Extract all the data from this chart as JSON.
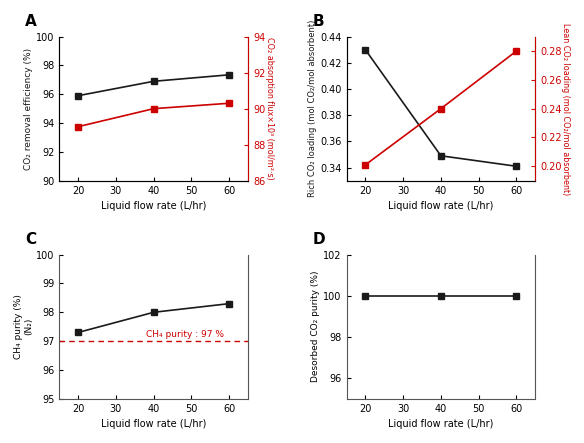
{
  "x": [
    20,
    40,
    60
  ],
  "A": {
    "black_y": [
      95.9,
      96.9,
      97.35
    ],
    "red_y": [
      89.0,
      90.0,
      90.3
    ],
    "ylim_left": [
      90,
      100
    ],
    "ylim_right": [
      86,
      94
    ],
    "yticks_left": [
      90,
      92,
      94,
      96,
      98,
      100
    ],
    "yticks_right": [
      86,
      88,
      90,
      92,
      94
    ],
    "ylabel_left": "CO₂ removal efficiency (%)",
    "ylabel_right": "CO₂ absorption flux×10³ (mol/m²·s)",
    "xlabel": "Liquid flow rate (L/hr)",
    "label": "A"
  },
  "B": {
    "black_y": [
      0.43,
      0.349,
      0.341
    ],
    "red_y": [
      0.201,
      0.24,
      0.28
    ],
    "ylim_left": [
      0.33,
      0.44
    ],
    "ylim_right": [
      0.19,
      0.29
    ],
    "yticks_left": [
      0.34,
      0.36,
      0.38,
      0.4,
      0.42,
      0.44
    ],
    "yticks_right": [
      0.2,
      0.22,
      0.24,
      0.26,
      0.28
    ],
    "ylabel_left": "Rich CO₂ loading (mol CO₂/mol absorbent)",
    "ylabel_right": "Lean CO₂ loading (mol CO₂/mol absorbent)",
    "xlabel": "Liquid flow rate (L/hr)",
    "label": "B"
  },
  "C": {
    "black_y": [
      97.3,
      98.0,
      98.3
    ],
    "ylim": [
      95,
      100
    ],
    "yticks": [
      95,
      96,
      97,
      98,
      99,
      100
    ],
    "ref_line": 97,
    "ref_label": "CH₄ purity : 97 %",
    "ylabel_left": "CH₄ purity (%)\n(N₂)",
    "xlabel": "Liquid flow rate (L/hr)",
    "label": "C"
  },
  "D": {
    "black_y": [
      100.0,
      100.0,
      100.0
    ],
    "ylim": [
      95,
      102
    ],
    "yticks": [
      96,
      98,
      100,
      102
    ],
    "ylabel_left": "Desorbed CO₂ purity (%)",
    "xlabel": "Liquid flow rate (L/hr)",
    "label": "D"
  },
  "xlim": [
    15,
    65
  ],
  "xticks": [
    20,
    30,
    40,
    50,
    60
  ],
  "marker": "s",
  "markersize": 4,
  "linewidth": 1.2,
  "black_color": "#1a1a1a",
  "red_color": "#cc0000",
  "background": "#ffffff"
}
